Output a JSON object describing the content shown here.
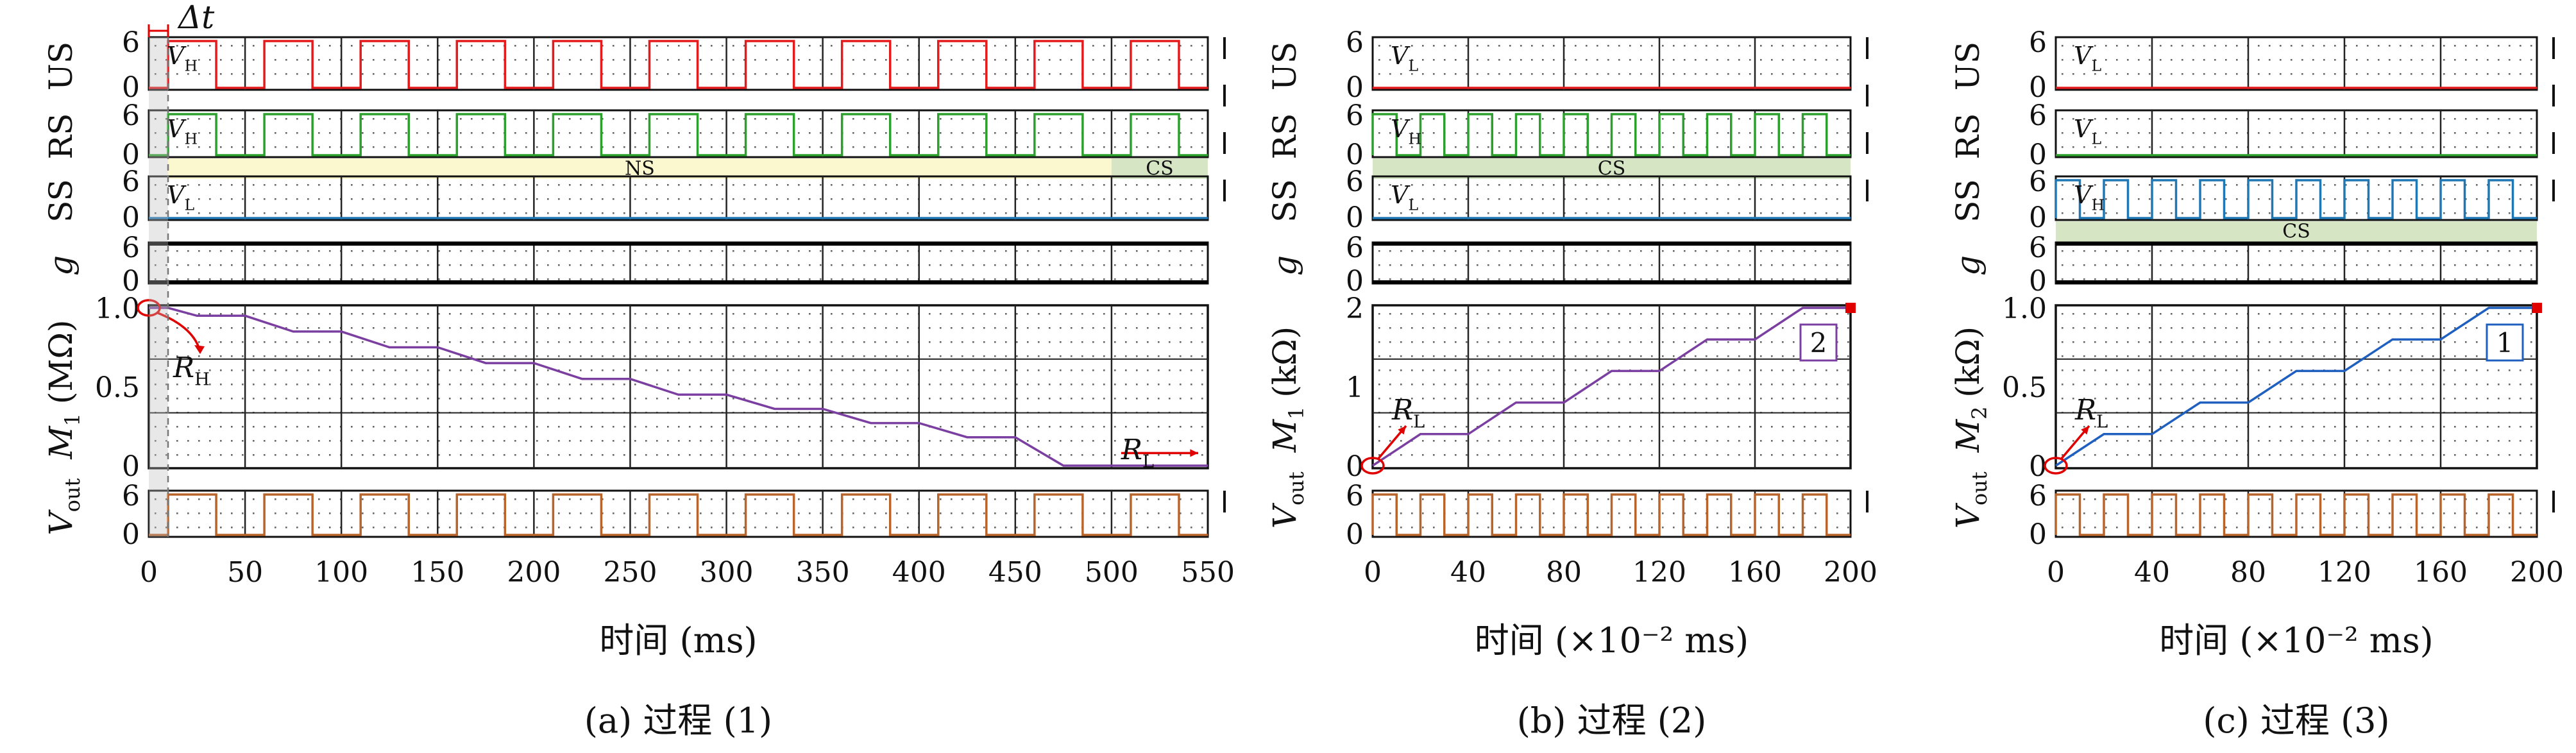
{
  "figure": {
    "colors": {
      "us": "#e41a1c",
      "rs": "#2ca02c",
      "ss": "#1f77b4",
      "g": "#000000",
      "vout": "#b8642a",
      "memristor_a": "#7a3fa0",
      "memristor_b": "#7a3fa0",
      "memristor_c": "#1f5fbf",
      "ns_band": "#fbf7cf",
      "cs_band": "#d6e6c4",
      "grid": "#222222"
    },
    "row_labels": {
      "us": "US",
      "rs": "RS",
      "ss": "SS",
      "g": "g",
      "vout": "V",
      "vout_sub": "out"
    },
    "delta_t": "Δt",
    "vh": "V",
    "vh_sub": "H",
    "vl": "V",
    "vl_sub": "L",
    "rh": "R",
    "rh_sub": "H",
    "rl": "R",
    "rl_sub": "L"
  },
  "chart_data": [
    {
      "id": "a",
      "type": "line",
      "caption": "(a) 过程 (1)",
      "xlabel": "时间 (ms)",
      "xlim": [
        0,
        550
      ],
      "xticks": [
        "0",
        "50",
        "100",
        "150",
        "200",
        "250",
        "300",
        "350",
        "400",
        "450",
        "500",
        "550"
      ],
      "pulse_period": 50,
      "pulse_width": 25,
      "pulse_offset": 10,
      "signals": {
        "us": {
          "level": "V_H",
          "value": 6,
          "pulses": true,
          "yticks": [
            "6",
            "0"
          ]
        },
        "rs": {
          "level": "V_H",
          "value": 6,
          "pulses": true,
          "yticks": [
            "6",
            "0"
          ]
        },
        "ss": {
          "level": "V_L",
          "value": 0,
          "pulses": false,
          "yticks": [
            "6",
            "0"
          ]
        },
        "g": {
          "value": 0,
          "yticks": [
            "6",
            "0"
          ]
        },
        "vout": {
          "value": 6,
          "pulses": true,
          "yticks": [
            "6",
            "0"
          ]
        }
      },
      "bands": [
        {
          "label": "NS",
          "from": 10,
          "to": 500
        },
        {
          "label": "CS",
          "from": 500,
          "to": 550
        }
      ],
      "memristor": {
        "ylabel": "M",
        "ylabel_sub": "1",
        "ylabel_unit": "(MΩ)",
        "ylim": [
          0,
          1.0
        ],
        "yticks": [
          "1.0",
          "0.5",
          "0"
        ],
        "x": [
          0,
          10,
          25,
          50,
          75,
          100,
          125,
          150,
          175,
          200,
          225,
          250,
          275,
          300,
          325,
          350,
          375,
          400,
          425,
          450,
          475,
          500,
          525,
          550
        ],
        "y": [
          1.0,
          1.0,
          0.95,
          0.95,
          0.85,
          0.85,
          0.75,
          0.75,
          0.65,
          0.65,
          0.55,
          0.55,
          0.45,
          0.45,
          0.36,
          0.36,
          0.27,
          0.27,
          0.18,
          0.18,
          0.0,
          0.0,
          0.0,
          0.0
        ]
      }
    },
    {
      "id": "b",
      "type": "line",
      "caption": "(b) 过程 (2)",
      "xlabel": "时间 (×10⁻² ms)",
      "xlim": [
        0,
        200
      ],
      "xticks": [
        "0",
        "40",
        "80",
        "120",
        "160",
        "200"
      ],
      "pulse_period": 20,
      "pulse_width": 10,
      "pulse_offset": 0,
      "signals": {
        "us": {
          "level": "V_L",
          "value": 0,
          "pulses": false,
          "yticks": [
            "6",
            "0"
          ]
        },
        "rs": {
          "level": "V_H",
          "value": 6,
          "pulses": true,
          "yticks": [
            "6",
            "0"
          ]
        },
        "ss": {
          "level": "V_L",
          "value": 0,
          "pulses": false,
          "yticks": [
            "6",
            "0"
          ]
        },
        "g": {
          "value": 0,
          "yticks": [
            "6",
            "0"
          ]
        },
        "vout": {
          "value": 6,
          "pulses": true,
          "yticks": [
            "6",
            "0"
          ]
        }
      },
      "bands": [
        {
          "label": "CS",
          "from": 0,
          "to": 200
        }
      ],
      "memristor": {
        "ylabel": "M",
        "ylabel_sub": "1",
        "ylabel_unit": "(kΩ)",
        "ylim": [
          0,
          2
        ],
        "yticks": [
          "2",
          "1",
          "0"
        ],
        "badge": "2",
        "x": [
          0,
          10,
          20,
          40,
          60,
          80,
          100,
          120,
          140,
          160,
          180,
          200
        ],
        "y": [
          0,
          0.2,
          0.4,
          0.4,
          0.8,
          0.8,
          1.2,
          1.2,
          1.6,
          1.6,
          2.0,
          2.0
        ]
      }
    },
    {
      "id": "c",
      "type": "line",
      "caption": "(c) 过程 (3)",
      "xlabel": "时间 (×10⁻² ms)",
      "xlim": [
        0,
        200
      ],
      "xticks": [
        "0",
        "40",
        "80",
        "120",
        "160",
        "200"
      ],
      "pulse_period": 20,
      "pulse_width": 10,
      "pulse_offset": 0,
      "signals": {
        "us": {
          "level": "V_L",
          "value": 0,
          "pulses": false,
          "yticks": [
            "6",
            "0"
          ]
        },
        "rs": {
          "level": "V_L",
          "value": 0,
          "pulses": false,
          "yticks": [
            "6",
            "0"
          ]
        },
        "ss": {
          "level": "V_H",
          "value": 6,
          "pulses": true,
          "yticks": [
            "6",
            "0"
          ]
        },
        "g": {
          "value": 0,
          "yticks": [
            "6",
            "0"
          ]
        },
        "vout": {
          "value": 6,
          "pulses": true,
          "yticks": [
            "6",
            "0"
          ]
        }
      },
      "bands": [
        {
          "label": "CS",
          "from": 0,
          "to": 200
        }
      ],
      "memristor": {
        "ylabel": "M",
        "ylabel_sub": "2",
        "ylabel_unit": "(kΩ)",
        "ylim": [
          0,
          1.0
        ],
        "yticks": [
          "1.0",
          "0.5",
          "0"
        ],
        "badge": "1",
        "x": [
          0,
          10,
          20,
          40,
          60,
          80,
          100,
          120,
          140,
          160,
          180,
          200
        ],
        "y": [
          0,
          0.1,
          0.2,
          0.2,
          0.4,
          0.4,
          0.6,
          0.6,
          0.8,
          0.8,
          1.0,
          1.0
        ]
      }
    }
  ]
}
